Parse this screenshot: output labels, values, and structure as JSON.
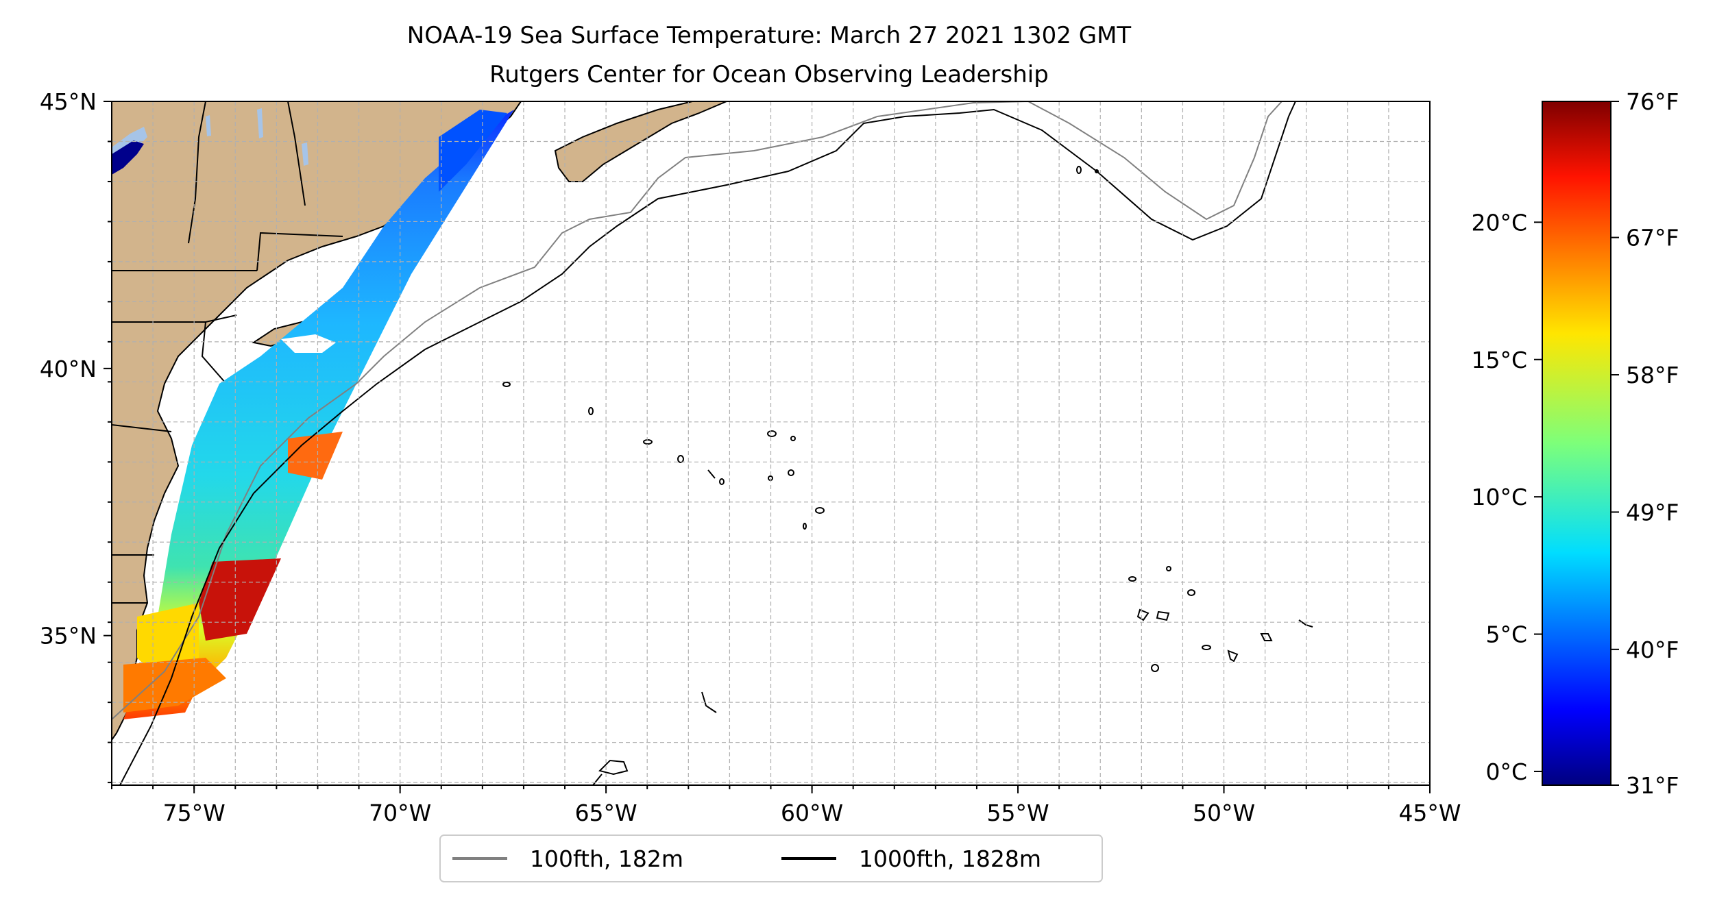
{
  "title": {
    "line1": "NOAA-19 Sea Surface Temperature: March 27 2021 1302 GMT",
    "line2": "Rutgers Center for Ocean Observing Leadership"
  },
  "map": {
    "lon_range": [
      -77,
      -45
    ],
    "lat_range": [
      32.2,
      45
    ],
    "lon_ticks": [
      -75,
      -70,
      -65,
      -60,
      -55,
      -50,
      -45
    ],
    "lat_ticks": [
      35,
      40,
      45
    ],
    "lon_tick_labels": [
      "75°W",
      "70°W",
      "65°W",
      "60°W",
      "55°W",
      "50°W",
      "45°W"
    ],
    "lat_tick_labels": [
      "35°N",
      "40°N",
      "45°N"
    ],
    "grid": true,
    "land_color": "#d2b48c",
    "lake_color": "#a6c4e8"
  },
  "legend": {
    "items": [
      {
        "label": "100fth, 182m",
        "color": "#808080"
      },
      {
        "label": "1000fth, 1828m",
        "color": "#000000"
      }
    ],
    "placement": "bottom-center"
  },
  "colorbar": {
    "colormap": "jet",
    "range_c": [
      -0.5,
      24.4
    ],
    "celsius_ticks": [
      0,
      5,
      10,
      15,
      20
    ],
    "celsius_labels": [
      "0°C",
      "5°C",
      "10°C",
      "15°C",
      "20°C"
    ],
    "fahrenheit_values": [
      31,
      40,
      49,
      58,
      67,
      76
    ],
    "fahrenheit_labels": [
      "31°F",
      "40°F",
      "49°F",
      "58°F",
      "67°F",
      "76°F"
    ]
  }
}
